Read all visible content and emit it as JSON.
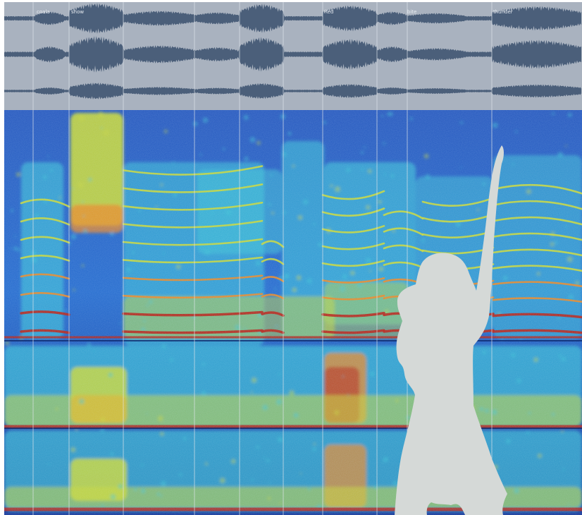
{
  "colors": {
    "waveform_background": "#a9b2bf",
    "waveform": "#4b5f7a",
    "marker": "#dfe5ea",
    "silhouette": "#d5d9d7",
    "spectrogram_palette": [
      "#1b3b9c",
      "#2a7ad0",
      "#3fc6d8",
      "#c7d63f",
      "#e98a2b",
      "#b8261c"
    ]
  },
  "panels": {
    "waveform": "three stacked waveform tracks",
    "spectrogram": "three stacked spectrogram bands with bright harmonic lines"
  },
  "segment_labels": [
    "coala",
    "show",
    "",
    "",
    "",
    "Red",
    "",
    "bite",
    "thunder"
  ],
  "icon_names": [
    "singer-silhouette-icon"
  ]
}
